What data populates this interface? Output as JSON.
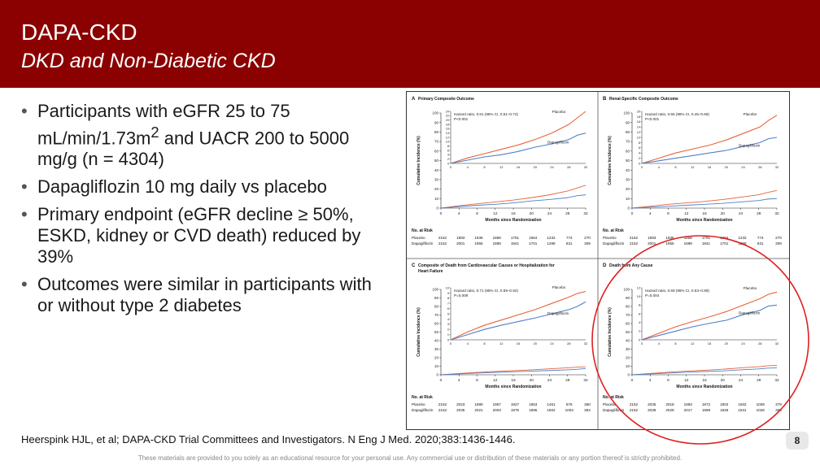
{
  "header": {
    "title": "DAPA-CKD",
    "subtitle": "DKD and Non-Diabetic CKD",
    "background_color": "#8b0000"
  },
  "bullets": [
    {
      "pre": "Participants with eGFR 25 to 75 mL/min/1.73m",
      "sup": "2",
      "post": " and UACR 200 to 5000 mg/g (n = 4304)"
    },
    {
      "pre": "Dapagliflozin 10 mg daily vs placebo",
      "sup": "",
      "post": ""
    },
    {
      "pre": "Primary endpoint (eGFR decline ≥ 50%, ESKD, kidney or CVD death) reduced by 39%",
      "sup": "",
      "post": ""
    },
    {
      "pre": "Outcomes were similar in participants with or without type 2 diabetes",
      "sup": "",
      "post": ""
    }
  ],
  "reference": "Heerspink HJL, et al; DAPA-CKD Trial Committees and Investigators. N Eng J Med. 2020;383:1436-1446.",
  "page_number": "8",
  "disclaimer": "These materials are provided to you solely as an educational resource for your personal use. Any commercial use or distribution of these materials or any portion thereof is strictly prohibited.",
  "annotation": {
    "shape": "circle",
    "color": "#e02020",
    "encloses_panel": "D"
  },
  "chart_data": [
    {
      "type": "line",
      "panel": "A",
      "title": "Primary Composite Outcome",
      "xlabel": "Months since Randomization",
      "ylabel": "Cumulative Incidence (%)",
      "annotation_lines": [
        "Hazard ratio, 0.61 (95% CI, 0.51–0.72)",
        "P<0.001"
      ],
      "x_ticks": [
        0,
        4,
        8,
        12,
        16,
        20,
        24,
        28,
        32
      ],
      "inset_y_ticks": [
        0,
        2,
        4,
        6,
        8,
        10,
        12,
        14,
        16,
        18,
        20,
        22,
        24
      ],
      "main_y_ticks": [
        0,
        10,
        20,
        30,
        40,
        50,
        60,
        70,
        80,
        90,
        100
      ],
      "inset_ylim": [
        0,
        24
      ],
      "series": [
        {
          "name": "Placebo",
          "color": "#e8633a",
          "x": [
            0,
            4,
            8,
            12,
            16,
            20,
            24,
            28,
            30,
            32
          ],
          "y": [
            0,
            2.5,
            4.5,
            6.5,
            8.5,
            11,
            14,
            18,
            21,
            24
          ]
        },
        {
          "name": "Dapagliflozin",
          "color": "#4f7fc9",
          "x": [
            0,
            4,
            8,
            12,
            16,
            20,
            24,
            28,
            30,
            32
          ],
          "y": [
            0,
            1.5,
            3,
            4,
            5.5,
            7.5,
            9,
            11,
            13,
            14
          ]
        }
      ],
      "risk_table": {
        "header": "No. at Risk",
        "rows": [
          {
            "label": "Placebo",
            "values": [
              "2152",
              "1993",
              "1936",
              "1858",
              "1791",
              "1664",
              "1232",
              "774",
              "270"
            ]
          },
          {
            "label": "Dapagliflozin",
            "values": [
              "2152",
              "2001",
              "1955",
              "1898",
              "1841",
              "1701",
              "1288",
              "831",
              "309"
            ]
          }
        ]
      }
    },
    {
      "type": "line",
      "panel": "B",
      "title": "Renal-Specific Composite Outcome",
      "xlabel": "Months since Randomization",
      "ylabel": "Cumulative Incidence (%)",
      "annotation_lines": [
        "Hazard ratio, 0.56 (95% CI, 0.45–0.68)",
        "P<0.001"
      ],
      "x_ticks": [
        0,
        4,
        8,
        12,
        16,
        20,
        24,
        28,
        32
      ],
      "inset_y_ticks": [
        0,
        2,
        4,
        6,
        8,
        10,
        12,
        14,
        16,
        18,
        20
      ],
      "main_y_ticks": [
        0,
        10,
        20,
        30,
        40,
        50,
        60,
        70,
        80,
        90,
        100
      ],
      "inset_ylim": [
        0,
        20
      ],
      "series": [
        {
          "name": "Placebo",
          "color": "#e8633a",
          "x": [
            0,
            4,
            8,
            12,
            16,
            20,
            24,
            28,
            30,
            32
          ],
          "y": [
            0,
            2,
            4,
            5.5,
            7,
            9,
            11.5,
            14,
            16.5,
            18.5
          ]
        },
        {
          "name": "Dapagliflozin",
          "color": "#4f7fc9",
          "x": [
            0,
            4,
            8,
            12,
            16,
            20,
            24,
            28,
            30,
            32
          ],
          "y": [
            0,
            1,
            2,
            3,
            4,
            5,
            6.5,
            8,
            9.5,
            10
          ]
        }
      ],
      "risk_table": {
        "header": "No. at Risk",
        "rows": [
          {
            "label": "Placebo",
            "values": [
              "2152",
              "1993",
              "1936",
              "1858",
              "1791",
              "1664",
              "1232",
              "774",
              "270"
            ]
          },
          {
            "label": "Dapagliflozin",
            "values": [
              "2152",
              "2001",
              "1955",
              "1898",
              "1841",
              "1701",
              "1288",
              "831",
              "309"
            ]
          }
        ]
      }
    },
    {
      "type": "line",
      "panel": "C",
      "title": "Composite of Death from Cardiovascular Causes or Hospitalization for Heart Failure",
      "xlabel": "Months since Randomization",
      "ylabel": "Cumulative Incidence (%)",
      "annotation_lines": [
        "Hazard ratio, 0.71 (95% CI, 0.55–0.92)",
        "P=0.009"
      ],
      "x_ticks": [
        0,
        4,
        8,
        12,
        16,
        20,
        24,
        28,
        32
      ],
      "inset_y_ticks": [
        0,
        1,
        2,
        3,
        4,
        5,
        6,
        7,
        8,
        9,
        10
      ],
      "main_y_ticks": [
        0,
        10,
        20,
        30,
        40,
        50,
        60,
        70,
        80,
        90,
        100
      ],
      "inset_ylim": [
        0,
        10
      ],
      "series": [
        {
          "name": "Placebo",
          "color": "#e8633a",
          "x": [
            0,
            4,
            8,
            12,
            16,
            20,
            24,
            28,
            30,
            32
          ],
          "y": [
            0,
            1.5,
            2.8,
            3.8,
            4.8,
            5.8,
            7,
            8.2,
            8.9,
            9.3
          ]
        },
        {
          "name": "Dapagliflozin",
          "color": "#4f7fc9",
          "x": [
            0,
            4,
            8,
            12,
            16,
            20,
            24,
            28,
            30,
            32
          ],
          "y": [
            0,
            1,
            2,
            2.8,
            3.5,
            4.2,
            5,
            5.8,
            6.4,
            7.3
          ]
        }
      ],
      "risk_table": {
        "header": "No. at Risk",
        "rows": [
          {
            "label": "Placebo",
            "values": [
              "2152",
              "2023",
              "1989",
              "1957",
              "1927",
              "1853",
              "1451",
              "976",
              "360"
            ]
          },
          {
            "label": "Dapagliflozin",
            "values": [
              "2152",
              "2035",
              "2021",
              "2003",
              "1975",
              "1895",
              "1502",
              "1003",
              "384"
            ]
          }
        ]
      }
    },
    {
      "type": "line",
      "panel": "D",
      "title": "Death from Any Cause",
      "xlabel": "Months since Randomization",
      "ylabel": "Cumulative Incidence (%)",
      "annotation_lines": [
        "Hazard ratio, 0.69 (95% CI, 0.53–0.88)",
        "P=0.004"
      ],
      "x_ticks": [
        0,
        4,
        8,
        12,
        16,
        20,
        24,
        28,
        32
      ],
      "inset_y_ticks": [
        0,
        2,
        4,
        6,
        8,
        10,
        12
      ],
      "main_y_ticks": [
        0,
        10,
        20,
        30,
        40,
        50,
        60,
        70,
        80,
        90,
        100
      ],
      "inset_ylim": [
        0,
        12
      ],
      "series": [
        {
          "name": "Placebo",
          "color": "#e8633a",
          "x": [
            0,
            4,
            8,
            12,
            16,
            20,
            24,
            28,
            30,
            32
          ],
          "y": [
            0,
            1.5,
            3,
            4.2,
            5.3,
            6.5,
            8,
            9.5,
            10.5,
            11
          ]
        },
        {
          "name": "Dapagliflozin",
          "color": "#4f7fc9",
          "x": [
            0,
            4,
            8,
            12,
            16,
            20,
            24,
            28,
            30,
            32
          ],
          "y": [
            0,
            1,
            2,
            3,
            3.8,
            4.5,
            5.8,
            6.8,
            7.8,
            8
          ]
        }
      ],
      "risk_table": {
        "header": "No. at Risk",
        "rows": [
          {
            "label": "Placebo",
            "values": [
              "2152",
              "2035",
              "2018",
              "1993",
              "1972",
              "1902",
              "1502",
              "1009",
              "379"
            ]
          },
          {
            "label": "Dapagliflozin",
            "values": [
              "2152",
              "2039",
              "2029",
              "2017",
              "1998",
              "1925",
              "1531",
              "1028",
              "398"
            ]
          }
        ]
      }
    }
  ]
}
